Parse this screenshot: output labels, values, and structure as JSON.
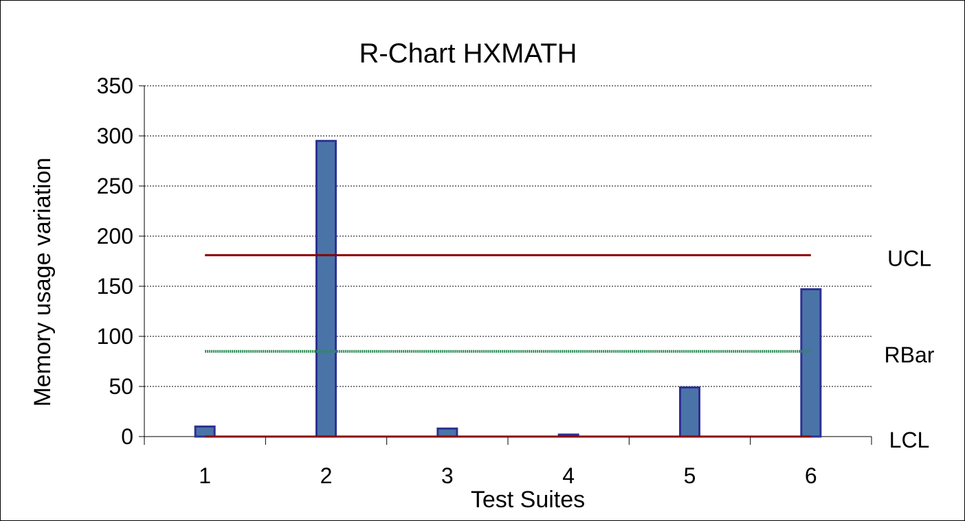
{
  "chart_data": {
    "type": "bar",
    "title": "R-Chart HXMATH",
    "xlabel": "Test Suites",
    "ylabel": "Memory usage variation",
    "categories": [
      "1",
      "2",
      "3",
      "4",
      "5",
      "6"
    ],
    "series": [
      {
        "values": [
          10,
          295,
          8,
          2,
          49,
          147
        ]
      }
    ],
    "ylim": [
      0,
      350
    ],
    "yticks": [
      0,
      50,
      100,
      150,
      200,
      250,
      300,
      350
    ],
    "grid": true,
    "reference_lines": [
      {
        "name": "UCL",
        "value": 181,
        "color": "#8b0000",
        "style": "solid"
      },
      {
        "name": "RBar",
        "value": 85,
        "color": "#2e8b57",
        "style": "dotted"
      },
      {
        "name": "LCL",
        "value": 0,
        "color": "#8b0000",
        "style": "solid"
      }
    ],
    "colors": {
      "bar_fill": "#4a74a8",
      "bar_stroke": "#2e3192",
      "grid": "#000000",
      "axis": "#000000"
    }
  }
}
